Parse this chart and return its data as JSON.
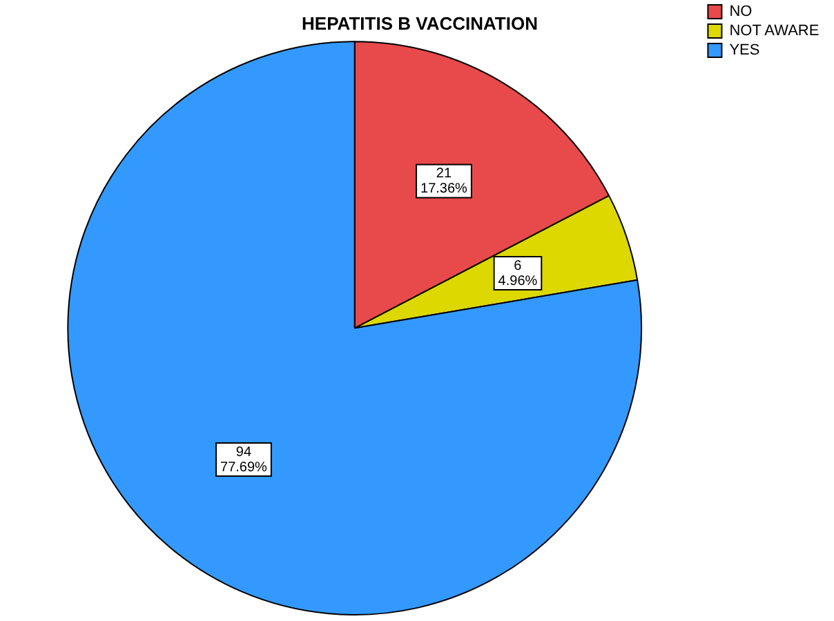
{
  "chart_data": {
    "type": "pie",
    "title": "HEPATITIS B VACCINATION",
    "categories": [
      "NO",
      "NOT AWARE",
      "YES"
    ],
    "values": [
      21,
      6,
      94
    ],
    "colors": [
      "#e8494b",
      "#dcd800",
      "#3399ff"
    ],
    "value_labels": [
      "21\n17.36%",
      "6\n4.96%",
      "94\n77.69%"
    ],
    "legend": "top right"
  }
}
